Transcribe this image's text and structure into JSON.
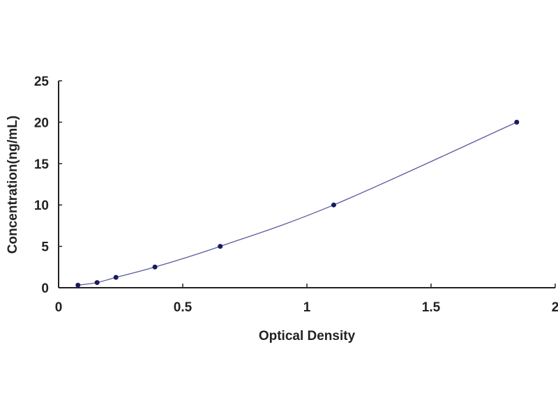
{
  "chart_data": {
    "type": "scatter",
    "title": "",
    "xlabel": "Optical Density",
    "ylabel": "Concentration(ng/mL)",
    "xlim": [
      0,
      2
    ],
    "ylim": [
      0,
      25
    ],
    "xticks": [
      "0",
      "0.5",
      "1",
      "1.5",
      "2"
    ],
    "yticks": [
      "0",
      "5",
      "10",
      "15",
      "20",
      "25"
    ],
    "grid": false,
    "fit_line": "smooth curve through points",
    "colors": {
      "points": "#1a1a5e",
      "line": "#5a5aa0",
      "axis": "#222222"
    },
    "series": [
      {
        "x": [
          0.078,
          0.155,
          0.231,
          0.388,
          0.651,
          1.108,
          1.845
        ],
        "y": [
          0.31,
          0.625,
          1.25,
          2.5,
          5,
          10,
          20
        ]
      }
    ]
  }
}
